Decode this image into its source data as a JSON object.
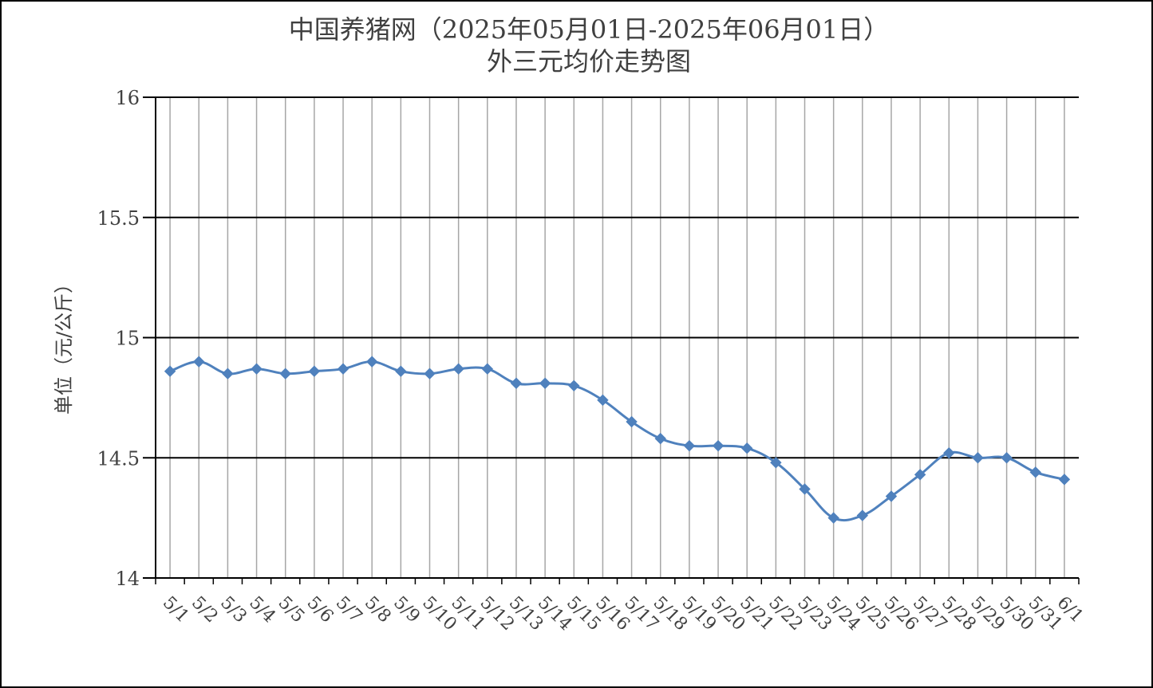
{
  "chart_data": {
    "type": "line",
    "title": "中国养猪网（2025年05月01日-2025年06月01日）",
    "subtitle": "外三元均价走势图",
    "xlabel": "",
    "ylabel": "单位（元/公斤）",
    "ylim": [
      14,
      16
    ],
    "yticks": [
      "14",
      "14.5",
      "15",
      "15.5",
      "16"
    ],
    "grid": true,
    "legend": "none",
    "categories": [
      "5/1",
      "5/2",
      "5/3",
      "5/4",
      "5/5",
      "5/6",
      "5/7",
      "5/8",
      "5/9",
      "5/10",
      "5/11",
      "5/12",
      "5/13",
      "5/14",
      "5/15",
      "5/16",
      "5/17",
      "5/18",
      "5/19",
      "5/20",
      "5/21",
      "5/22",
      "5/23",
      "5/24",
      "5/25",
      "5/26",
      "5/27",
      "5/28",
      "5/29",
      "5/30",
      "5/31",
      "6/1"
    ],
    "series": [
      {
        "color": "#4f81bd",
        "values": [
          14.86,
          14.9,
          14.85,
          14.87,
          14.85,
          14.86,
          14.87,
          14.9,
          14.86,
          14.85,
          14.87,
          14.87,
          14.81,
          14.81,
          14.8,
          14.74,
          14.65,
          14.58,
          14.55,
          14.55,
          14.54,
          14.48,
          14.37,
          14.25,
          14.26,
          14.34,
          14.43,
          14.52,
          14.5,
          14.5,
          14.44,
          14.41
        ]
      }
    ]
  }
}
